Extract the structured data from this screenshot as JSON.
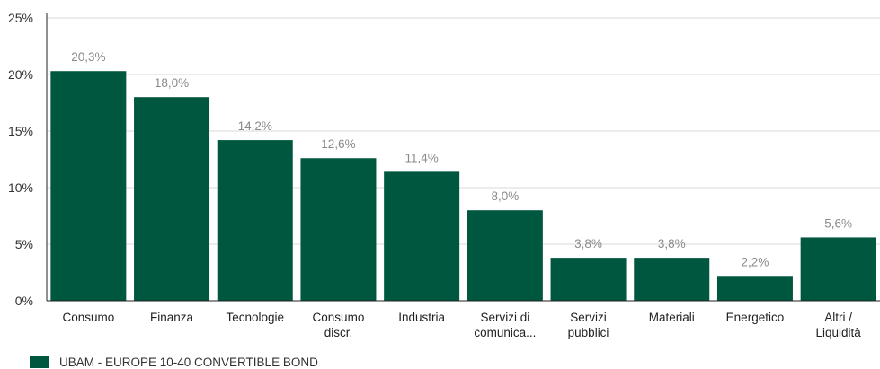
{
  "chart_data": {
    "type": "bar",
    "categories": [
      [
        "Consumo"
      ],
      [
        "Finanza"
      ],
      [
        "Tecnologie"
      ],
      [
        "Consumo",
        "discr."
      ],
      [
        "Industria"
      ],
      [
        "Servizi di",
        "comunica..."
      ],
      [
        "Servizi",
        "pubblici"
      ],
      [
        "Materiali"
      ],
      [
        "Energetico"
      ],
      [
        "Altri /",
        "Liquidità"
      ]
    ],
    "series": [
      {
        "name": "UBAM - EUROPE 10-40 CONVERTIBLE BOND",
        "values": [
          20.3,
          18.0,
          14.2,
          12.6,
          11.4,
          8.0,
          3.8,
          3.8,
          2.2,
          5.6
        ],
        "labels": [
          "20,3%",
          "18,0%",
          "14,2%",
          "12,6%",
          "11,4%",
          "8,0%",
          "3,8%",
          "3,8%",
          "2,2%",
          "5,6%"
        ],
        "color": "#00573f"
      }
    ],
    "ylim": [
      0,
      25
    ],
    "yticks": [
      0,
      5,
      10,
      15,
      20,
      25
    ],
    "ytick_labels": [
      "0%",
      "5%",
      "10%",
      "15%",
      "20%",
      "25%"
    ],
    "grid": true,
    "legend_position": "bottom-left"
  },
  "colors": {
    "bar": "#00573f",
    "grid": "#d9d9d9",
    "axis": "#222222"
  }
}
